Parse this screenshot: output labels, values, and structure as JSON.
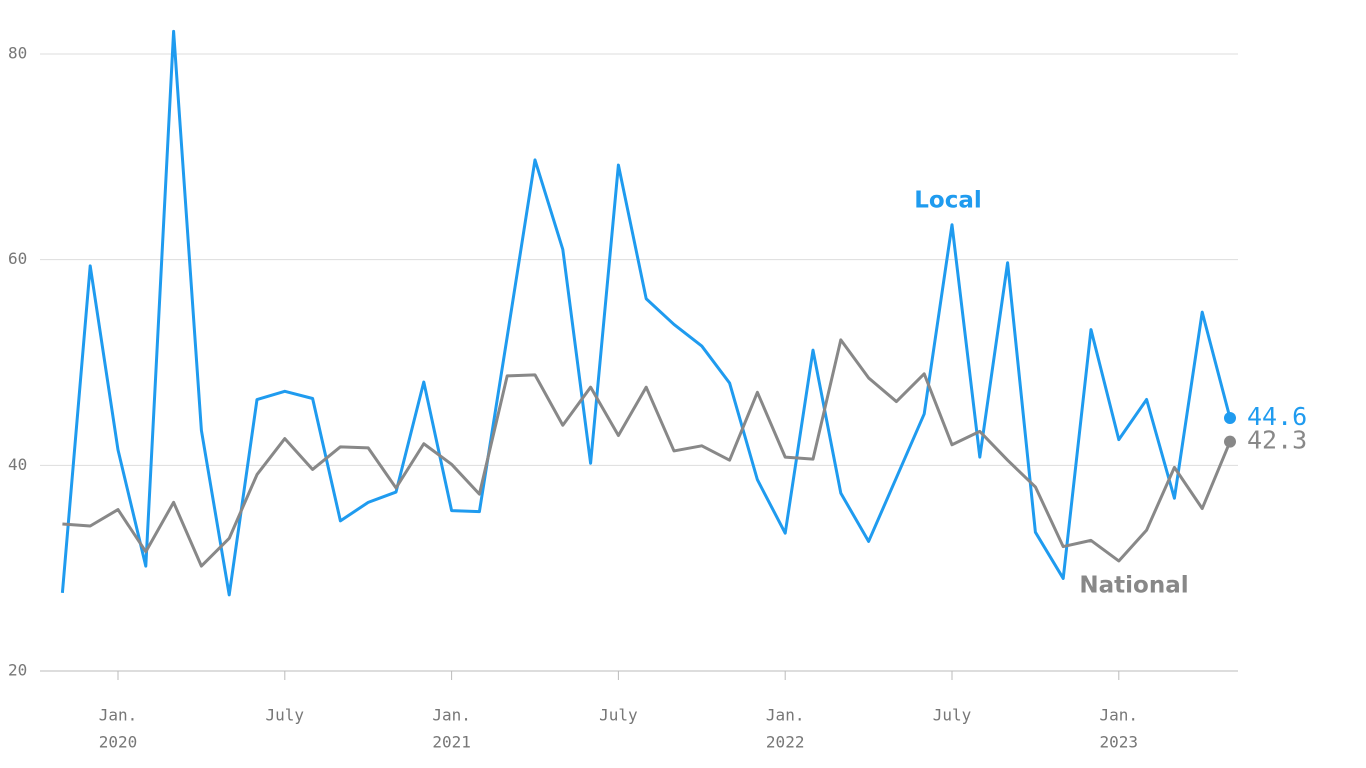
{
  "chart_data": {
    "type": "line",
    "x": [
      "2019-11",
      "2019-12",
      "2020-01",
      "2020-02",
      "2020-03",
      "2020-04",
      "2020-05",
      "2020-06",
      "2020-07",
      "2020-08",
      "2020-09",
      "2020-10",
      "2020-11",
      "2020-12",
      "2021-01",
      "2021-02",
      "2021-03",
      "2021-04",
      "2021-05",
      "2021-06",
      "2021-07",
      "2021-08",
      "2021-09",
      "2021-10",
      "2021-11",
      "2021-12",
      "2022-01",
      "2022-02",
      "2022-03",
      "2022-04",
      "2022-05",
      "2022-06",
      "2022-07",
      "2022-08",
      "2022-09",
      "2022-10",
      "2022-11",
      "2022-12",
      "2023-01",
      "2023-02",
      "2023-03",
      "2023-04",
      "2023-05"
    ],
    "series": [
      {
        "name": "Local",
        "color": "#1f9bef",
        "values": [
          27.6,
          59.4,
          41.5,
          30.2,
          82.2,
          43.4,
          27.4,
          46.4,
          47.2,
          46.5,
          34.6,
          36.4,
          37.4,
          48.1,
          35.6,
          35.5,
          52.5,
          69.7,
          61.0,
          40.2,
          69.2,
          56.2,
          53.7,
          51.6,
          48.0,
          38.6,
          33.4,
          51.2,
          37.3,
          32.6,
          38.8,
          45.0,
          63.4,
          40.8,
          59.7,
          33.5,
          29.0,
          53.2,
          42.5,
          46.4,
          36.8,
          54.9,
          44.6
        ]
      },
      {
        "name": "National",
        "color": "#888888",
        "values": [
          34.3,
          34.1,
          35.7,
          31.6,
          36.4,
          30.2,
          32.9,
          39.1,
          42.6,
          39.6,
          41.8,
          41.7,
          37.8,
          42.1,
          40.1,
          37.2,
          48.7,
          48.8,
          43.9,
          47.6,
          42.9,
          47.6,
          41.4,
          41.9,
          40.5,
          47.1,
          40.8,
          40.6,
          52.2,
          48.5,
          46.2,
          48.9,
          42.0,
          43.3,
          40.5,
          37.9,
          32.1,
          32.7,
          30.7,
          33.7,
          39.8,
          35.8,
          42.3
        ]
      }
    ],
    "ylim": [
      20,
      80
    ],
    "yticks": [
      20,
      40,
      60,
      80
    ],
    "grid": true,
    "xticks": [
      {
        "value": "2020-01",
        "label": "Jan.",
        "year": "2020"
      },
      {
        "value": "2020-07",
        "label": "July"
      },
      {
        "value": "2021-01",
        "label": "Jan.",
        "year": "2021"
      },
      {
        "value": "2021-07",
        "label": "July"
      },
      {
        "value": "2022-01",
        "label": "Jan.",
        "year": "2022"
      },
      {
        "value": "2022-07",
        "label": "July"
      },
      {
        "value": "2023-01",
        "label": "Jan.",
        "year": "2023"
      }
    ]
  }
}
